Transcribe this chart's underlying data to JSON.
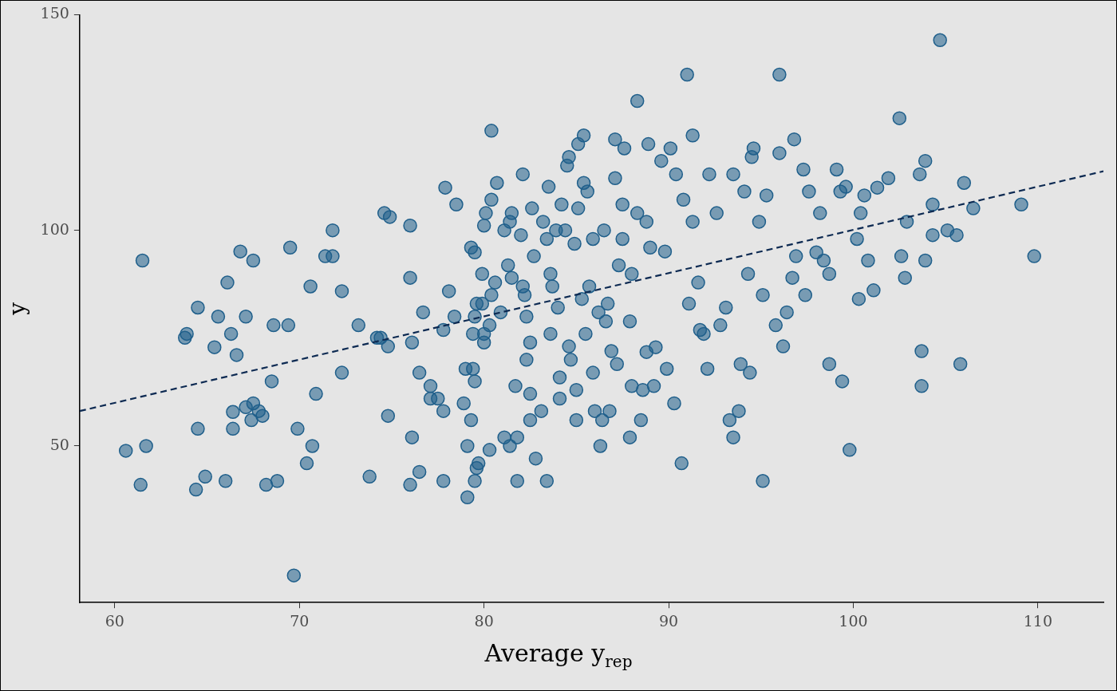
{
  "chart_data": {
    "type": "scatter",
    "xlabel": "Average y$_{rep}$",
    "ylabel": "y",
    "xlim": [
      58.1,
      113.55
    ],
    "ylim": [
      13.7,
      150
    ],
    "xticks": [
      60,
      70,
      80,
      90,
      100,
      110
    ],
    "yticks": [
      50,
      100,
      150
    ],
    "grid": false,
    "marker": "circle",
    "series": [
      {
        "type": "scatter",
        "color": "#1f5f8b",
        "x": [
          60.6,
          61.4,
          61.5,
          61.7,
          63.8,
          63.9,
          64.5,
          64.5,
          64.4,
          64.9,
          65.4,
          65.6,
          66.0,
          66.1,
          66.3,
          66.4,
          66.4,
          66.6,
          66.8,
          67.1,
          67.1,
          67.5,
          67.5,
          67.4,
          67.8,
          68.0,
          68.2,
          68.5,
          68.6,
          68.8,
          69.5,
          69.4,
          69.7,
          69.9,
          70.4,
          70.6,
          70.7,
          70.9,
          71.4,
          71.8,
          71.8,
          72.3,
          72.3,
          73.2,
          73.8,
          74.2,
          74.4,
          74.6,
          74.8,
          74.9,
          74.8,
          76.0,
          76.0,
          76.1,
          76.1,
          76.0,
          76.5,
          76.5,
          76.7,
          77.1,
          77.1,
          77.5,
          77.9,
          77.8,
          77.8,
          77.8,
          78.1,
          78.4,
          78.5,
          78.9,
          79.0,
          79.1,
          79.1,
          79.3,
          79.3,
          79.4,
          79.4,
          79.5,
          79.5,
          79.5,
          79.5,
          79.6,
          79.6,
          79.7,
          79.9,
          80.0,
          80.0,
          80.0,
          80.1,
          79.9,
          80.3,
          80.3,
          80.4,
          80.4,
          80.6,
          80.4,
          80.7,
          80.9,
          81.1,
          81.1,
          81.3,
          81.4,
          81.4,
          81.5,
          81.5,
          81.7,
          81.8,
          81.8,
          82.0,
          82.1,
          82.1,
          82.2,
          82.3,
          82.3,
          82.5,
          82.5,
          82.5,
          82.7,
          82.6,
          82.8,
          83.1,
          83.2,
          83.4,
          83.5,
          83.4,
          83.6,
          83.6,
          83.7,
          83.9,
          84.0,
          84.1,
          84.1,
          84.2,
          84.4,
          84.5,
          84.6,
          84.6,
          84.7,
          84.9,
          85.0,
          85.0,
          85.1,
          85.1,
          85.4,
          85.3,
          85.4,
          85.5,
          85.6,
          85.7,
          85.9,
          85.9,
          86.0,
          86.2,
          86.3,
          86.4,
          86.5,
          86.6,
          86.7,
          86.8,
          86.9,
          87.1,
          87.1,
          87.2,
          87.3,
          87.5,
          87.6,
          87.5,
          87.9,
          87.9,
          88.0,
          88.0,
          88.3,
          88.3,
          88.5,
          88.6,
          88.8,
          88.8,
          88.9,
          89.0,
          89.2,
          89.3,
          89.6,
          89.8,
          89.9,
          90.1,
          90.3,
          90.4,
          90.7,
          90.8,
          91.0,
          91.1,
          91.3,
          91.3,
          91.6,
          91.7,
          91.9,
          92.1,
          92.2,
          92.6,
          92.8,
          93.1,
          93.3,
          93.5,
          93.5,
          93.8,
          93.9,
          94.1,
          94.3,
          94.4,
          94.5,
          94.6,
          94.9,
          95.1,
          95.1,
          95.3,
          95.8,
          96.0,
          96.0,
          96.2,
          96.4,
          96.8,
          96.7,
          96.9,
          97.3,
          97.4,
          97.6,
          98.0,
          98.2,
          98.4,
          98.7,
          98.7,
          99.1,
          99.3,
          99.4,
          99.6,
          99.8,
          100.2,
          100.3,
          100.4,
          100.6,
          100.8,
          101.1,
          101.3,
          101.9,
          102.5,
          102.6,
          102.8,
          102.9,
          103.6,
          103.7,
          103.7,
          103.9,
          103.9,
          104.3,
          104.3,
          104.7,
          105.1,
          105.6,
          105.8,
          106.0,
          106.5,
          109.1,
          109.8
        ],
        "values": [
          48.9,
          41.0,
          93.0,
          50.0,
          75.1,
          76.0,
          82.1,
          54.0,
          39.9,
          42.9,
          72.9,
          80.0,
          41.9,
          87.9,
          76.0,
          57.9,
          54.0,
          71.1,
          95.1,
          80.0,
          59.0,
          93.0,
          59.9,
          56.0,
          58.1,
          57.0,
          41.0,
          65.0,
          78.0,
          41.9,
          96.0,
          78.0,
          20.0,
          54.0,
          46.0,
          87.0,
          50.0,
          62.1,
          94.0,
          94.0,
          100,
          85.9,
          67.0,
          78.0,
          42.9,
          75.1,
          75.1,
          104.0,
          73.1,
          103.1,
          57.0,
          101.1,
          89.0,
          74.0,
          52.0,
          41.0,
          67.0,
          44.0,
          81.0,
          63.9,
          61.0,
          61.0,
          109.9,
          76.9,
          58.1,
          41.9,
          85.9,
          80.0,
          106.0,
          59.9,
          67.9,
          50.0,
          38.1,
          56.0,
          96.0,
          67.9,
          76.0,
          65.0,
          80.0,
          94.9,
          41.9,
          83.0,
          44.9,
          46.0,
          89.9,
          74.0,
          76.0,
          101.1,
          104.0,
          83.0,
          49.1,
          78.0,
          123.1,
          107.1,
          87.9,
          85.0,
          111.0,
          81.0,
          52.0,
          100,
          91.9,
          50.0,
          102.0,
          104.0,
          89.0,
          63.9,
          52.0,
          41.9,
          98.9,
          113.0,
          87.0,
          85.0,
          80.0,
          70.0,
          74.0,
          56.0,
          62.1,
          94.0,
          105.1,
          47.1,
          58.1,
          102.0,
          98.0,
          110.1,
          41.9,
          89.9,
          76.0,
          87.0,
          100,
          82.1,
          61.0,
          65.9,
          106.0,
          100,
          115.0,
          117.0,
          73.1,
          70.0,
          96.9,
          63.0,
          56.0,
          105.1,
          120.0,
          122.0,
          84.1,
          111.0,
          76.0,
          109.0,
          87.0,
          98.0,
          67.0,
          58.1,
          81.0,
          50.0,
          56.0,
          100,
          78.9,
          83.0,
          58.1,
          72.0,
          121.1,
          112.1,
          69.0,
          91.9,
          98.0,
          119.0,
          106.0,
          78.9,
          52.0,
          89.9,
          63.9,
          130.0,
          104.0,
          56.0,
          63.0,
          102.0,
          71.8,
          120.0,
          96.0,
          63.9,
          72.9,
          116.1,
          95.1,
          67.9,
          119.0,
          59.9,
          113.0,
          46.0,
          107.1,
          136.1,
          83.0,
          122.0,
          102.0,
          87.9,
          76.9,
          76.0,
          67.9,
          113.0,
          104.0,
          78.0,
          82.1,
          56.0,
          52.0,
          113.0,
          58.1,
          69.0,
          109.0,
          89.9,
          67.0,
          117.0,
          119.0,
          102.0,
          85.0,
          41.9,
          108.1,
          78.0,
          117.9,
          136.1,
          73.1,
          81.0,
          121.1,
          89.0,
          94.0,
          114.1,
          85.0,
          109.0,
          94.9,
          104.0,
          93.0,
          89.9,
          69.0,
          114.1,
          109.0,
          65.0,
          110.1,
          49.1,
          98.0,
          84.1,
          104.0,
          108.1,
          93.0,
          86.1,
          109.9,
          112.1,
          126.0,
          94.0,
          89.0,
          102.0,
          113.0,
          72.0,
          63.9,
          93.0,
          116.1,
          98.9,
          106.0,
          144.1,
          100,
          98.9,
          69.0,
          111.0,
          105.1,
          106.0,
          94.0
        ]
      },
      {
        "type": "line",
        "color": "#0d2a52",
        "line_style": "dashed",
        "marker": "none",
        "x": [
          58.1,
          113.55
        ],
        "values": [
          58.1,
          113.7
        ]
      }
    ]
  }
}
